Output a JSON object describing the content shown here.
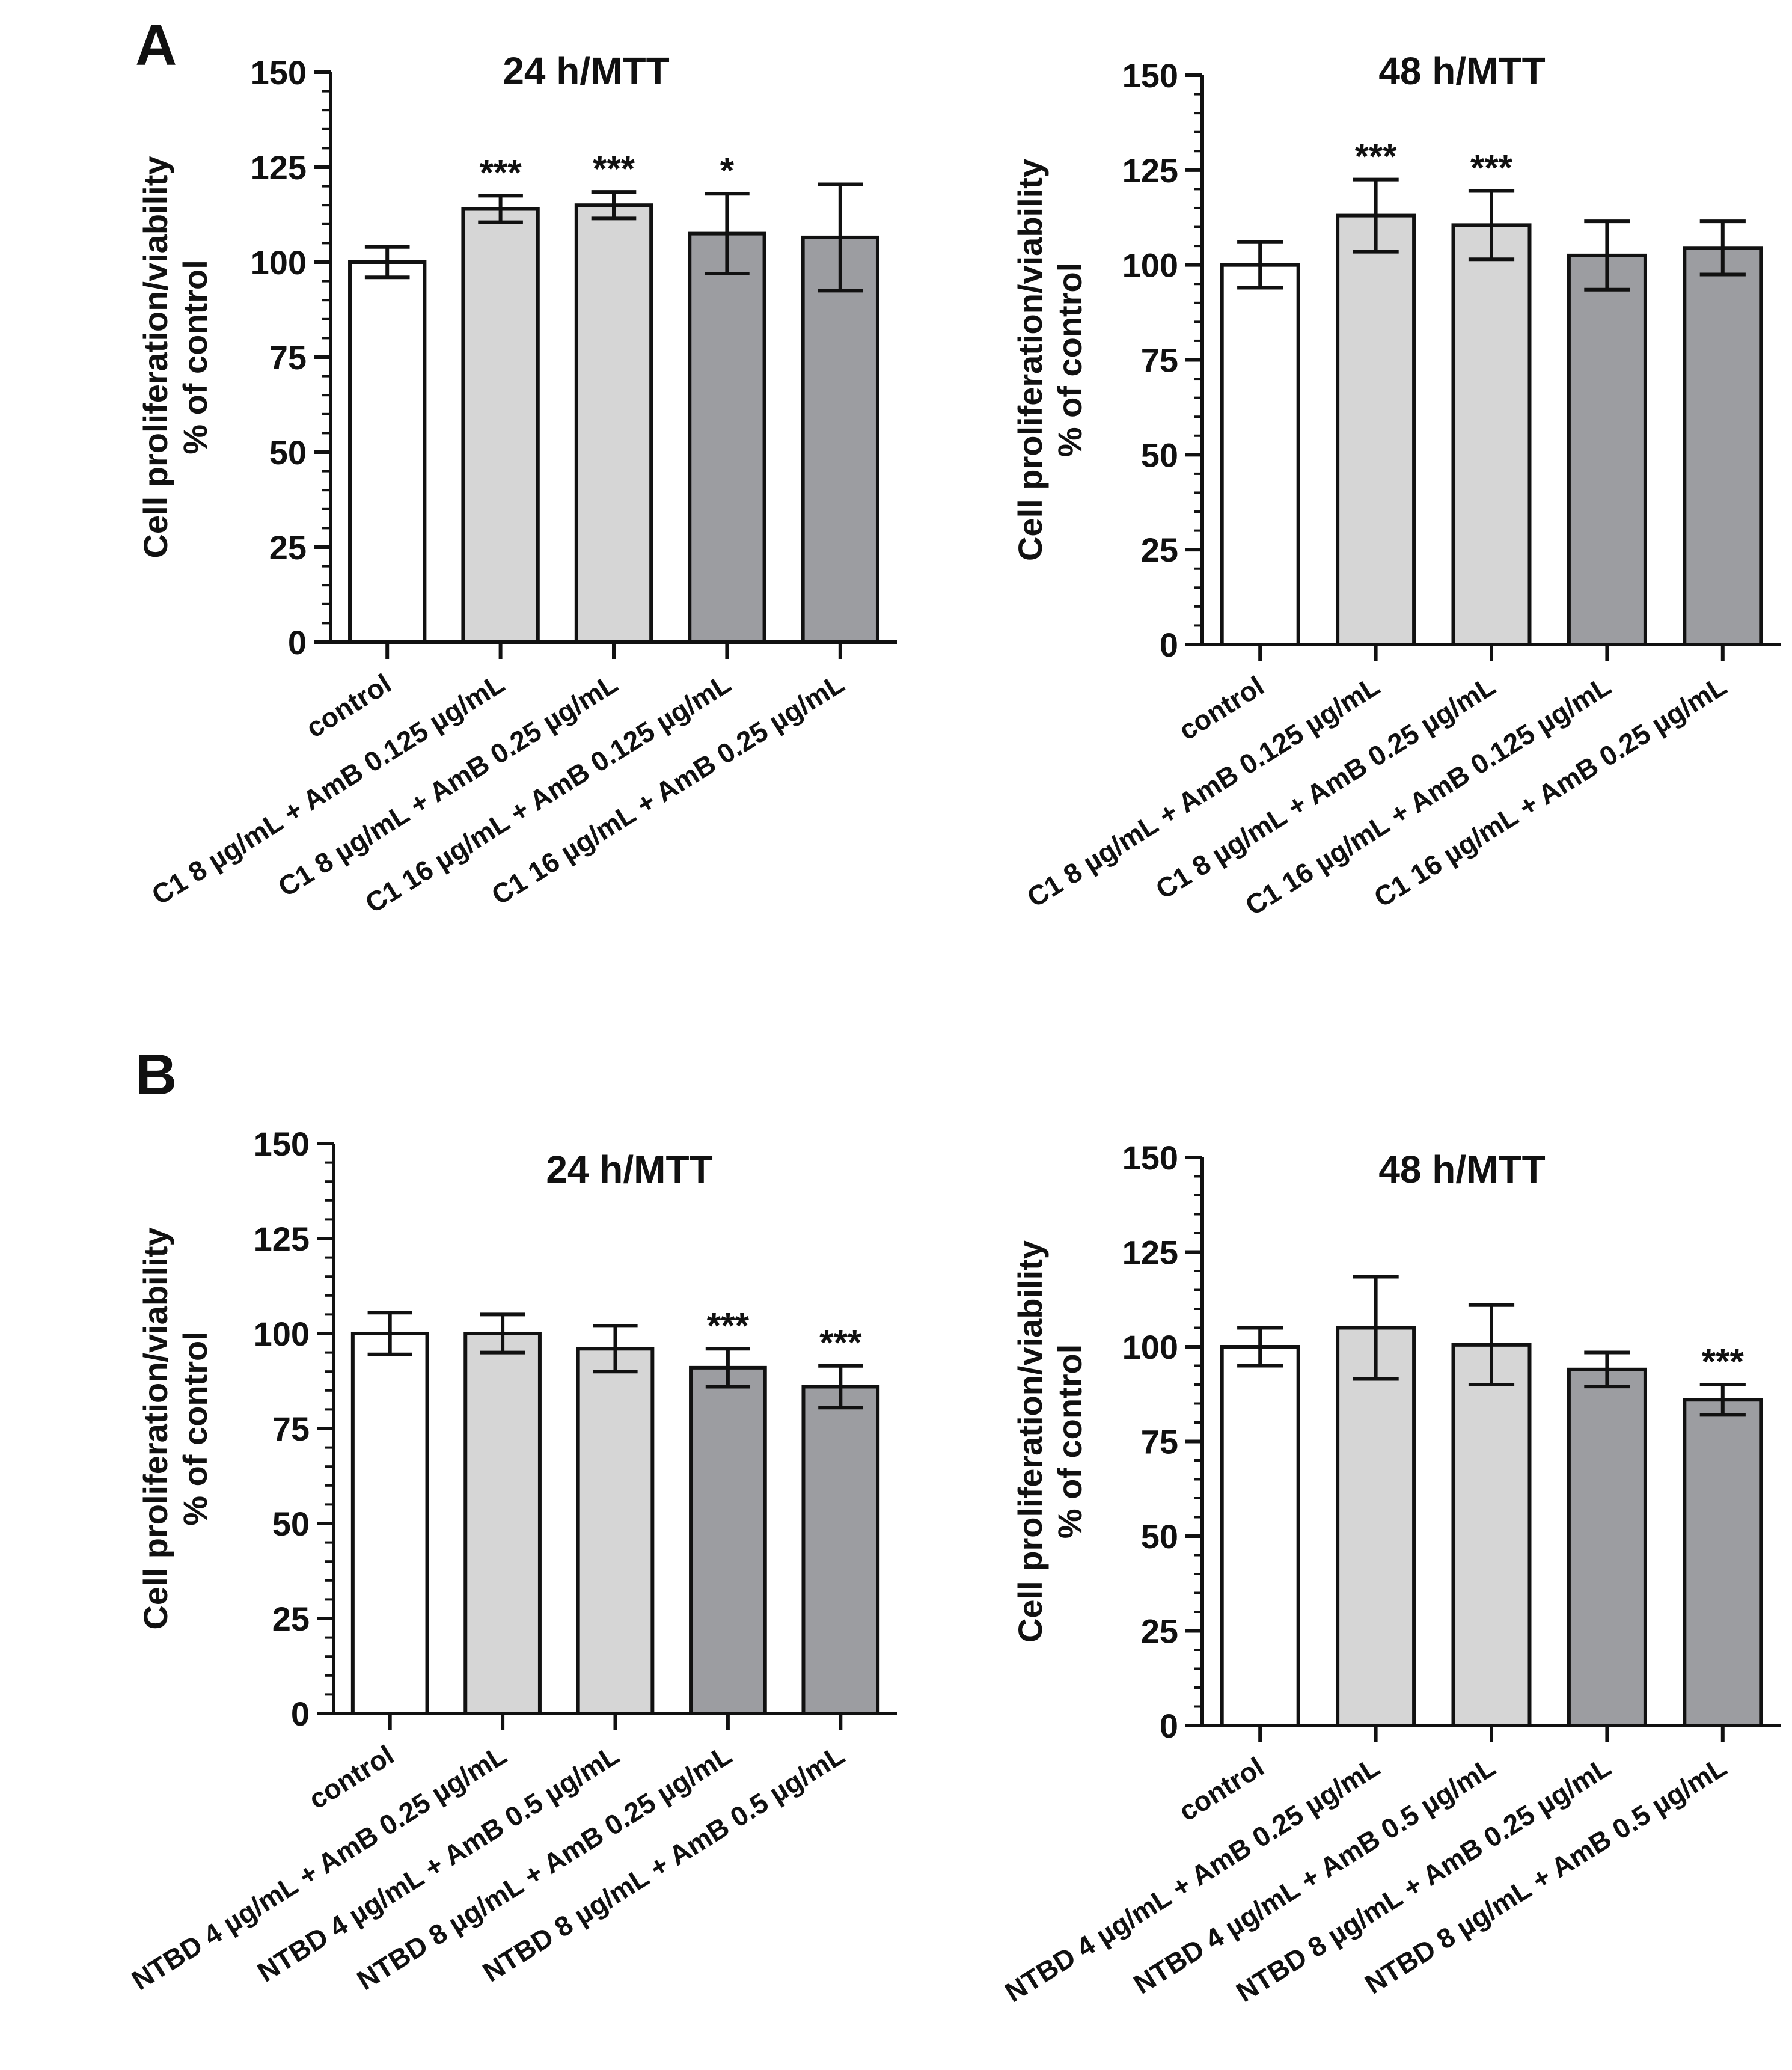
{
  "panels": [
    {
      "letter": "A"
    },
    {
      "letter": "B"
    }
  ],
  "colors": {
    "bar_control": "#ffffff",
    "bar_light": "#d6d6d6",
    "bar_dark": "#9c9da1",
    "stroke": "#111111"
  },
  "chart_data": [
    {
      "type": "bar",
      "panel": "A",
      "title": "24 h/MTT",
      "ylabel": [
        "Cell proliferation/viability",
        "% of control"
      ],
      "xlabel": "",
      "ylim": [
        0,
        150
      ],
      "yticks": [
        0,
        25,
        50,
        75,
        100,
        125,
        150
      ],
      "categories": [
        "control",
        "C1 8 µg/mL + AmB 0.125 µg/mL",
        "C1 8 µg/mL + AmB 0.25 µg/mL",
        "C1 16 µg/mL + AmB 0.125 µg/mL",
        "C1 16 µg/mL + AmB 0.25 µg/mL"
      ],
      "values": [
        100,
        114,
        115,
        107.5,
        106.5
      ],
      "errors": [
        4,
        3.5,
        3.5,
        10.5,
        14
      ],
      "significance": [
        "",
        "***",
        "***",
        "*",
        ""
      ],
      "fill_groups": [
        "control",
        "light",
        "light",
        "dark",
        "dark"
      ]
    },
    {
      "type": "bar",
      "panel": "A",
      "title": "48 h/MTT",
      "ylabel": [
        "Cell proliferation/viability",
        "% of control"
      ],
      "xlabel": "",
      "ylim": [
        0,
        150
      ],
      "yticks": [
        0,
        25,
        50,
        75,
        100,
        125,
        150
      ],
      "categories": [
        "control",
        "C1 8 µg/mL + AmB 0.125 µg/mL",
        "C1 8 µg/mL + AmB 0.25 µg/mL",
        "C1 16 µg/mL + AmB 0.125 µg/mL",
        "C1 16 µg/mL + AmB 0.25 µg/mL"
      ],
      "values": [
        100,
        113,
        110.5,
        102.5,
        104.5
      ],
      "errors": [
        6,
        9.5,
        9,
        9,
        7
      ],
      "significance": [
        "",
        "***",
        "***",
        "",
        ""
      ],
      "fill_groups": [
        "control",
        "light",
        "light",
        "dark",
        "dark"
      ]
    },
    {
      "type": "bar",
      "panel": "B",
      "title": "24 h/MTT",
      "ylabel": [
        "Cell proliferation/viability",
        "% of control"
      ],
      "xlabel": "",
      "ylim": [
        0,
        150
      ],
      "yticks": [
        0,
        25,
        50,
        75,
        100,
        125,
        150
      ],
      "categories": [
        "control",
        "NTBD 4 µg/mL + AmB 0.25 µg/mL",
        "NTBD 4 µg/mL + AmB 0.5 µg/mL",
        "NTBD 8 µg/mL + AmB 0.25 µg/mL",
        "NTBD 8 µg/mL + AmB 0.5 µg/mL"
      ],
      "values": [
        100,
        100,
        96,
        91,
        86
      ],
      "errors": [
        5.5,
        5,
        6,
        5,
        5.5
      ],
      "significance": [
        "",
        "",
        "",
        "***",
        "***"
      ],
      "fill_groups": [
        "control",
        "light",
        "light",
        "dark",
        "dark"
      ]
    },
    {
      "type": "bar",
      "panel": "B",
      "title": "48 h/MTT",
      "ylabel": [
        "Cell proliferation/viability",
        "% of control"
      ],
      "xlabel": "",
      "ylim": [
        0,
        150
      ],
      "yticks": [
        0,
        25,
        50,
        75,
        100,
        125,
        150
      ],
      "categories": [
        "control",
        "NTBD 4 µg/mL + AmB 0.25 µg/mL",
        "NTBD 4 µg/mL + AmB 0.5 µg/mL",
        "NTBD 8 µg/mL + AmB 0.25 µg/mL",
        "NTBD 8 µg/mL + AmB 0.5 µg/mL"
      ],
      "values": [
        100,
        105,
        100.5,
        94,
        86
      ],
      "errors": [
        5,
        13.5,
        10.5,
        4.5,
        4
      ],
      "significance": [
        "",
        "",
        "",
        "",
        "***"
      ],
      "fill_groups": [
        "control",
        "light",
        "light",
        "dark",
        "dark"
      ]
    }
  ]
}
